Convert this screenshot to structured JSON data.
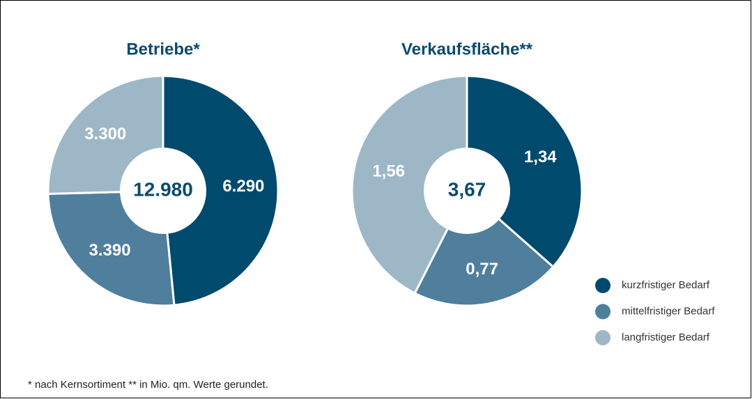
{
  "chart_data": [
    {
      "type": "donut",
      "title": "Betriebe*",
      "center_text": "12.980",
      "values": [
        6290,
        3390,
        3300
      ],
      "value_labels": [
        "6.290",
        "3.390",
        "3.300"
      ]
    },
    {
      "type": "donut",
      "title": "Verkaufsfläche**",
      "center_text": "3,67",
      "values": [
        1.34,
        0.77,
        1.56
      ],
      "value_labels": [
        "1,34",
        "0,77",
        "1,56"
      ]
    }
  ],
  "legend": {
    "labels": [
      "kurzfristiger Bedarf",
      "mittelfristiger Bedarf",
      "langfristiger Bedarf"
    ],
    "colors": [
      "#004a6e",
      "#4f7f9c",
      "#9db7c7"
    ]
  },
  "footnote": "* nach Kernsortiment ** in Mio. qm. Werte gerundet."
}
